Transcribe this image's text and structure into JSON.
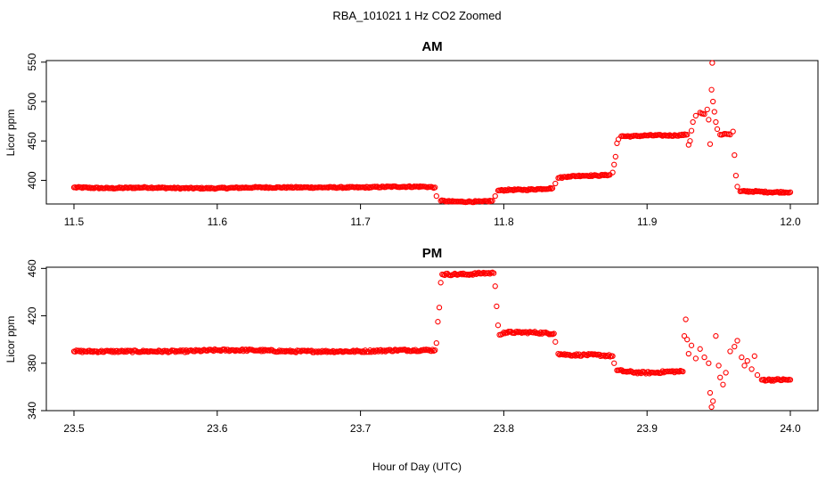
{
  "chart_data": {
    "type": "scatter",
    "title": "RBA_101021  1 Hz CO2 Zoomed",
    "xlabel": "Hour of Day (UTC)",
    "marker_color": "#ff0000",
    "panels": [
      {
        "title": "AM",
        "ylabel": "Licor ppm",
        "xlim": [
          11.5,
          12.0
        ],
        "ylim": [
          370,
          552
        ],
        "xticks": [
          "11.5",
          "11.6",
          "11.7",
          "11.8",
          "11.9",
          "12.0"
        ],
        "yticks": [
          "400",
          "450",
          "500",
          "550"
        ],
        "series": [
          {
            "values": [
              [
                11.5,
                391
              ],
              [
                11.525,
                390
              ],
              [
                11.55,
                391
              ],
              [
                11.575,
                390
              ],
              [
                11.6,
                390
              ],
              [
                11.625,
                391
              ],
              [
                11.65,
                391
              ],
              [
                11.675,
                391
              ],
              [
                11.7,
                391
              ],
              [
                11.725,
                392
              ],
              [
                11.745,
                392
              ],
              [
                11.752,
                391
              ],
              [
                11.753,
                380
              ],
              [
                11.756,
                374
              ],
              [
                11.765,
                373
              ],
              [
                11.775,
                373
              ],
              [
                11.785,
                373
              ],
              [
                11.792,
                374
              ],
              [
                11.794,
                380
              ],
              [
                11.796,
                387
              ],
              [
                11.805,
                388
              ],
              [
                11.815,
                388
              ],
              [
                11.825,
                389
              ],
              [
                11.834,
                390
              ],
              [
                11.836,
                396
              ],
              [
                11.838,
                403
              ],
              [
                11.845,
                405
              ],
              [
                11.855,
                406
              ],
              [
                11.865,
                406
              ],
              [
                11.874,
                407
              ],
              [
                11.876,
                410
              ],
              [
                11.877,
                420
              ],
              [
                11.878,
                430
              ],
              [
                11.879,
                447
              ],
              [
                11.88,
                452
              ],
              [
                11.882,
                456
              ],
              [
                11.89,
                456
              ],
              [
                11.9,
                457
              ],
              [
                11.91,
                457
              ],
              [
                11.92,
                457
              ],
              [
                11.928,
                458
              ],
              [
                11.929,
                445
              ],
              [
                11.93,
                450
              ],
              [
                11.931,
                463
              ],
              [
                11.932,
                474
              ],
              [
                11.934,
                482
              ],
              [
                11.937,
                486
              ],
              [
                11.94,
                484
              ],
              [
                11.942,
                490
              ],
              [
                11.943,
                477
              ],
              [
                11.944,
                446
              ],
              [
                11.945,
                515
              ],
              [
                11.9455,
                549
              ],
              [
                11.946,
                500
              ],
              [
                11.947,
                487
              ],
              [
                11.948,
                474
              ],
              [
                11.949,
                465
              ],
              [
                11.951,
                458
              ],
              [
                11.955,
                459
              ],
              [
                11.958,
                458
              ],
              [
                11.96,
                462
              ],
              [
                11.961,
                432
              ],
              [
                11.962,
                406
              ],
              [
                11.963,
                392
              ],
              [
                11.965,
                386
              ],
              [
                11.975,
                386
              ],
              [
                11.985,
                385
              ],
              [
                12.0,
                385
              ]
            ]
          }
        ]
      },
      {
        "title": "PM",
        "ylabel": "Licor ppm",
        "xlim": [
          23.5,
          24.0
        ],
        "ylim": [
          340,
          461
        ],
        "xticks": [
          "23.5",
          "23.6",
          "23.7",
          "23.8",
          "23.9",
          "24.0"
        ],
        "yticks": [
          "340",
          "380",
          "420",
          "460"
        ],
        "series": [
          {
            "values": [
              [
                23.5,
                390
              ],
              [
                23.525,
                390
              ],
              [
                23.55,
                390
              ],
              [
                23.575,
                390
              ],
              [
                23.6,
                391
              ],
              [
                23.625,
                391
              ],
              [
                23.65,
                390
              ],
              [
                23.675,
                390
              ],
              [
                23.7,
                390
              ],
              [
                23.725,
                391
              ],
              [
                23.745,
                391
              ],
              [
                23.752,
                391
              ],
              [
                23.753,
                397
              ],
              [
                23.754,
                415
              ],
              [
                23.755,
                427
              ],
              [
                23.756,
                448
              ],
              [
                23.757,
                455
              ],
              [
                23.765,
                455
              ],
              [
                23.775,
                455
              ],
              [
                23.785,
                456
              ],
              [
                23.793,
                456
              ],
              [
                23.794,
                445
              ],
              [
                23.795,
                428
              ],
              [
                23.796,
                412
              ],
              [
                23.797,
                404
              ],
              [
                23.8,
                406
              ],
              [
                23.81,
                406
              ],
              [
                23.82,
                406
              ],
              [
                23.835,
                405
              ],
              [
                23.836,
                398
              ],
              [
                23.838,
                388
              ],
              [
                23.845,
                387
              ],
              [
                23.855,
                387
              ],
              [
                23.865,
                387
              ],
              [
                23.876,
                386
              ],
              [
                23.877,
                380
              ],
              [
                23.879,
                374
              ],
              [
                23.885,
                373
              ],
              [
                23.895,
                372
              ],
              [
                23.905,
                372
              ],
              [
                23.915,
                373
              ],
              [
                23.925,
                373
              ],
              [
                23.926,
                403
              ],
              [
                23.927,
                417
              ],
              [
                23.928,
                400
              ],
              [
                23.929,
                388
              ],
              [
                23.931,
                395
              ],
              [
                23.934,
                384
              ],
              [
                23.937,
                392
              ],
              [
                23.94,
                385
              ],
              [
                23.943,
                380
              ],
              [
                23.944,
                355
              ],
              [
                23.945,
                343
              ],
              [
                23.946,
                348
              ],
              [
                23.948,
                403
              ],
              [
                23.95,
                378
              ],
              [
                23.951,
                368
              ],
              [
                23.953,
                362
              ],
              [
                23.955,
                372
              ],
              [
                23.958,
                390
              ],
              [
                23.961,
                394
              ],
              [
                23.963,
                399
              ],
              [
                23.966,
                385
              ],
              [
                23.968,
                378
              ],
              [
                23.97,
                382
              ],
              [
                23.973,
                375
              ],
              [
                23.975,
                386
              ],
              [
                23.977,
                370
              ],
              [
                23.98,
                366
              ],
              [
                23.99,
                366
              ],
              [
                24.0,
                366
              ]
            ]
          }
        ]
      }
    ]
  }
}
